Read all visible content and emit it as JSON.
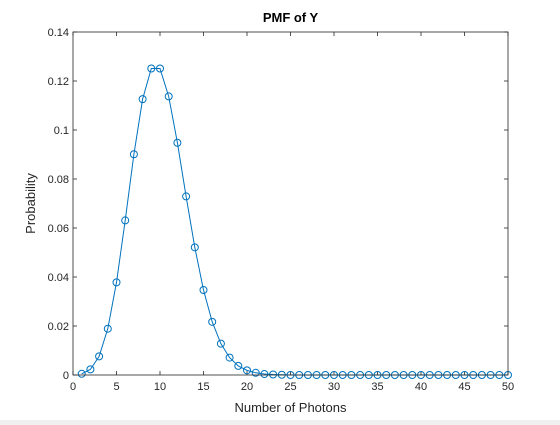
{
  "chart_data": {
    "type": "line",
    "title": "PMF of Y",
    "xlabel": "Number of Photons",
    "ylabel": "Probability",
    "xlim": [
      0,
      50
    ],
    "ylim": [
      0,
      0.14
    ],
    "xticks": [
      0,
      5,
      10,
      15,
      20,
      25,
      30,
      35,
      40,
      45,
      50
    ],
    "xtick_labels": [
      "0",
      "5",
      "10",
      "15",
      "20",
      "25",
      "30",
      "35",
      "40",
      "45",
      "50"
    ],
    "yticks": [
      0,
      0.02,
      0.04,
      0.06,
      0.08,
      0.1,
      0.12,
      0.14
    ],
    "ytick_labels": [
      "0",
      "0.02",
      "0.04",
      "0.06",
      "0.08",
      "0.1",
      "0.12",
      "0.14"
    ],
    "grid": false,
    "legend": "none",
    "series": [
      {
        "marker": "circle",
        "color": "#0072BD",
        "x": [
          1,
          2,
          3,
          4,
          5,
          6,
          7,
          8,
          9,
          10,
          11,
          12,
          13,
          14,
          15,
          16,
          17,
          18,
          19,
          20,
          21,
          22,
          23,
          24,
          25,
          26,
          27,
          28,
          29,
          30,
          31,
          32,
          33,
          34,
          35,
          36,
          37,
          38,
          39,
          40,
          41,
          42,
          43,
          44,
          45,
          46,
          47,
          48,
          49,
          50
        ],
        "y": [
          0.0005,
          0.0023,
          0.0076,
          0.0189,
          0.0378,
          0.0631,
          0.0901,
          0.1126,
          0.1251,
          0.1251,
          0.1137,
          0.0948,
          0.0729,
          0.0521,
          0.0347,
          0.0217,
          0.0128,
          0.0071,
          0.0037,
          0.0019,
          0.0009,
          0.0004,
          0.0002,
          0.0001,
          0.0,
          0.0,
          0.0,
          0.0,
          0.0,
          0.0,
          0.0,
          0.0,
          0.0,
          0.0,
          0.0,
          0.0,
          0.0,
          0.0,
          0.0,
          0.0,
          0.0,
          0.0,
          0.0,
          0.0,
          0.0,
          0.0,
          0.0,
          0.0,
          0.0,
          0.0
        ]
      }
    ]
  }
}
